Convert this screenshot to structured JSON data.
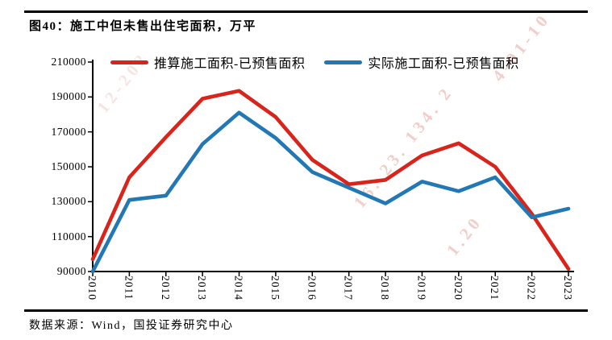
{
  "header": {
    "title": "图40：施工中但未售出住宅面积，万平"
  },
  "footer": {
    "source_text": "数据来源：Wind，国投证券研究中心"
  },
  "watermark": {
    "color": "rgba(219,125,115,0.38)",
    "fragments": [
      "4-01-10",
      "16. 23. 134. 2",
      "1.20",
      "12-202"
    ]
  },
  "chart_data": {
    "type": "line",
    "title": "施工中但未售出住宅面积，万平",
    "x": [
      2010,
      2011,
      2012,
      2013,
      2014,
      2015,
      2016,
      2017,
      2018,
      2019,
      2020,
      2021,
      2022,
      2023
    ],
    "series": [
      {
        "name": "推算施工面积-已预售面积",
        "color": "#d9241c",
        "values": [
          97000,
          144000,
          167000,
          189000,
          193500,
          178500,
          154000,
          140000,
          142500,
          156500,
          163500,
          150000,
          123000,
          91500
        ]
      },
      {
        "name": "实际施工面积-已预售面积",
        "color": "#2277b5",
        "values": [
          90000,
          131000,
          133500,
          163000,
          181000,
          166500,
          147000,
          138000,
          129000,
          141500,
          136000,
          144000,
          121000,
          126000
        ]
      }
    ],
    "ylim": [
      90000,
      210000
    ],
    "yticks": [
      90000,
      110000,
      130000,
      150000,
      170000,
      190000,
      210000
    ],
    "xlabel": "",
    "ylabel": "",
    "grid": false,
    "legend_position": "top",
    "axis_color": "#000000"
  }
}
